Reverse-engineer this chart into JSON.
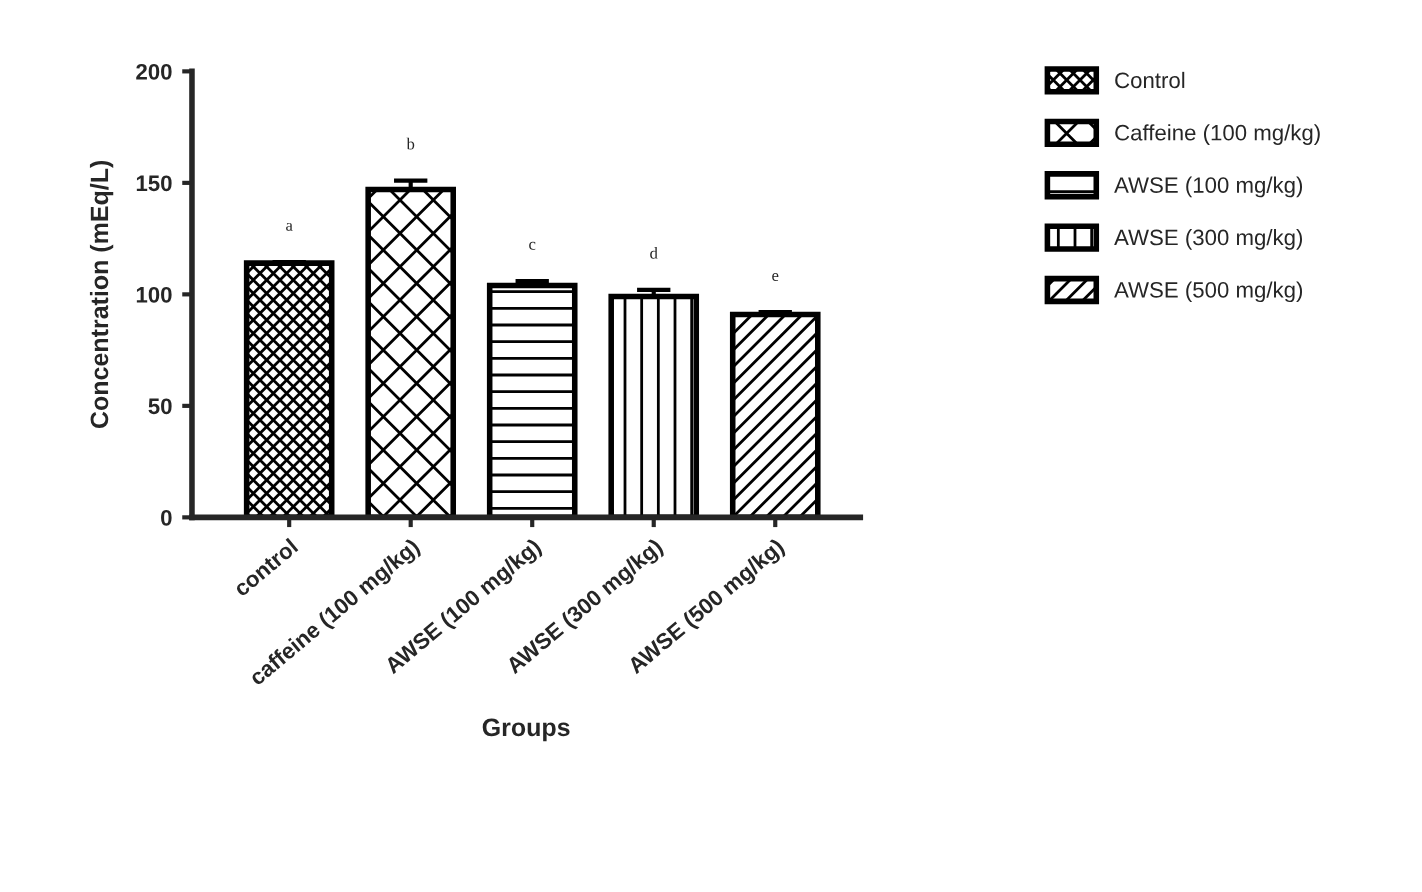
{
  "chart_data": {
    "type": "bar",
    "xlabel": "Groups",
    "ylabel": "Concentration (mEq/L)",
    "categories": [
      "control",
      "caffeine (100 mg/kg)",
      "AWSE (100 mg/kg)",
      "AWSE (300 mg/kg)",
      "AWSE (500 mg/kg)"
    ],
    "series": [
      {
        "name": "Control",
        "color": "#000000",
        "values": [
          114,
          null,
          null,
          null,
          null
        ],
        "errors": [
          0.5,
          null,
          null,
          null,
          null
        ]
      },
      {
        "name": "Caffeine (100 mg/kg)",
        "color": "#000000",
        "values": [
          null,
          147,
          null,
          null,
          null
        ],
        "errors": [
          null,
          4,
          null,
          null,
          null
        ]
      },
      {
        "name": "AWSE (100 mg/kg)",
        "color": "#000000",
        "values": [
          null,
          null,
          104,
          null,
          null
        ],
        "errors": [
          null,
          null,
          2,
          null,
          null
        ]
      },
      {
        "name": "AWSE (300 mg/kg)",
        "color": "#000000",
        "values": [
          null,
          null,
          null,
          99,
          null
        ],
        "errors": [
          null,
          null,
          null,
          3,
          null
        ]
      },
      {
        "name": "AWSE (500 mg/kg)",
        "color": "#000000",
        "values": [
          null,
          null,
          null,
          null,
          91
        ],
        "errors": [
          null,
          null,
          null,
          null,
          1
        ]
      }
    ],
    "ylim": [
      0,
      200
    ],
    "yticks": [
      0,
      50,
      100,
      150,
      200
    ],
    "annotations": [
      "a",
      "b",
      "c",
      "d",
      "e"
    ],
    "grid": false,
    "legend": "right"
  }
}
